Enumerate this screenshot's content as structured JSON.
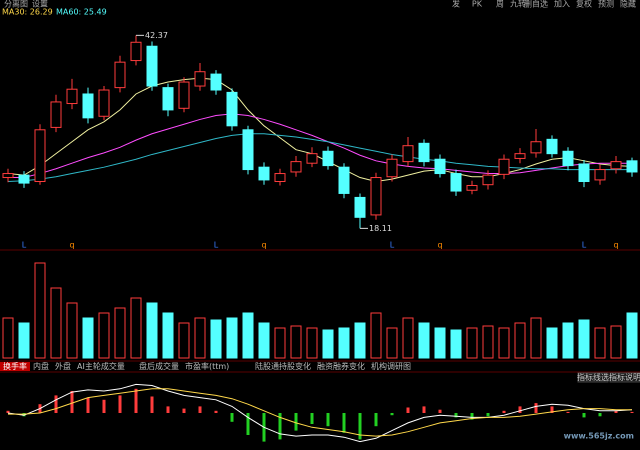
{
  "header": {
    "left_menu": [
      "分离图",
      "设置"
    ],
    "right_menu": [
      "发",
      "PK",
      "周",
      "九转",
      "删自选",
      "加入",
      "复权",
      "预测",
      "隐藏"
    ],
    "legend_texts": [
      {
        "text": "MA30: 26.29",
        "color": "#ffd84a"
      },
      {
        "text": "MA60: 25.49",
        "color": "#54ffff"
      }
    ]
  },
  "tabs": [
    "换手率",
    "内盘",
    "外盘",
    "AI主轮成交量",
    "盘后成交量",
    "市盈率(ttm)",
    "陆股通持股变化",
    "融资融券变化",
    "机构调研图"
  ],
  "buttons": [
    "指标线选",
    "指标说明"
  ],
  "watermark": "www.565jz.com",
  "chart_data": [
    {
      "type": "candlestick",
      "up_color": "#ff3c3c",
      "down_color": "#54ffff",
      "ylim": [
        16.9,
        44.55
      ],
      "annotations": [
        "42.37",
        "18.11"
      ],
      "open": [
        24.5,
        24.8,
        24.0,
        30.8,
        33.8,
        35.0,
        32.2,
        35.8,
        39.2,
        41.0,
        35.8,
        33.2,
        36.0,
        37.5,
        35.2,
        30.5,
        25.8,
        24.0,
        25.2,
        26.3,
        27.8,
        25.8,
        22.0,
        19.8,
        24.6,
        26.5,
        28.8,
        26.8,
        25.0,
        22.9,
        23.6,
        24.9,
        26.9,
        27.6,
        29.3,
        27.8,
        26.2,
        24.2,
        25.6,
        26.6
      ],
      "high": [
        25.6,
        25.3,
        31.2,
        34.9,
        36.9,
        35.8,
        36.0,
        39.8,
        42.37,
        41.6,
        36.3,
        37.1,
        38.9,
        38.0,
        35.7,
        31.0,
        26.4,
        25.6,
        27.2,
        28.3,
        28.4,
        26.3,
        22.5,
        25.1,
        27.4,
        29.6,
        29.3,
        27.4,
        25.5,
        24.1,
        25.4,
        27.4,
        28.2,
        30.6,
        29.8,
        28.3,
        26.7,
        26.1,
        27.2,
        27.0
      ],
      "low": [
        23.9,
        23.2,
        23.6,
        30.2,
        33.1,
        31.3,
        31.7,
        35.2,
        38.6,
        35.4,
        32.2,
        32.7,
        35.4,
        34.9,
        30.4,
        24.9,
        23.6,
        23.5,
        24.6,
        25.8,
        25.5,
        21.9,
        18.11,
        19.2,
        24.0,
        25.9,
        25.9,
        24.5,
        22.2,
        22.4,
        23.0,
        24.3,
        26.3,
        27.0,
        27.0,
        25.4,
        23.3,
        23.6,
        25.0,
        24.6
      ],
      "close": [
        25.0,
        23.8,
        30.5,
        34.0,
        35.6,
        32.0,
        35.5,
        39.0,
        41.5,
        36.0,
        33.0,
        36.5,
        37.8,
        35.5,
        31.0,
        25.5,
        24.2,
        25.0,
        26.5,
        27.5,
        26.0,
        22.5,
        19.5,
        24.5,
        26.8,
        28.5,
        26.5,
        25.0,
        22.8,
        23.5,
        24.8,
        26.8,
        27.5,
        29.0,
        27.5,
        26.0,
        24.0,
        25.5,
        26.5,
        25.2
      ],
      "series": [
        {
          "name": "MA10",
          "color": "#f0f0a0",
          "values": [
            25,
            24.8,
            26,
            27.5,
            29,
            30.5,
            31.5,
            33,
            35,
            36,
            36.5,
            36.8,
            37,
            36.8,
            35.5,
            33,
            31,
            29.5,
            28,
            27.5,
            26.5,
            25.5,
            24.5,
            24,
            24.3,
            24.8,
            25.3,
            25.5,
            25,
            24.6,
            24.6,
            25,
            25.5,
            26.2,
            26.8,
            27,
            26.6,
            26.2,
            26,
            25.9
          ]
        },
        {
          "name": "MA30",
          "color": "#ff4cff",
          "values": [
            24.5,
            24.5,
            25,
            25.6,
            26.3,
            27,
            27.6,
            28.3,
            29.2,
            30,
            30.6,
            31.2,
            31.8,
            32.3,
            32.5,
            32.3,
            31.8,
            31.2,
            30.5,
            29.8,
            29,
            28.2,
            27.3,
            26.6,
            26.2,
            25.9,
            25.7,
            25.6,
            25.4,
            25.2,
            25,
            25,
            25.1,
            25.4,
            25.7,
            26,
            26.2,
            26.3,
            26.3,
            26.29
          ]
        },
        {
          "name": "MA60",
          "color": "#2fb8c8",
          "values": [
            24.0,
            24.1,
            24.3,
            24.6,
            25.0,
            25.4,
            25.8,
            26.3,
            26.8,
            27.4,
            27.9,
            28.4,
            28.9,
            29.4,
            29.8,
            30.0,
            30.0,
            29.8,
            29.6,
            29.3,
            29.0,
            28.6,
            28.2,
            27.8,
            27.4,
            27.1,
            26.8,
            26.6,
            26.3,
            26.1,
            25.9,
            25.8,
            25.7,
            25.6,
            25.6,
            25.5,
            25.5,
            25.5,
            25.5,
            25.49
          ]
        }
      ],
      "signals": [
        null,
        "L",
        null,
        null,
        "q",
        null,
        null,
        null,
        null,
        null,
        null,
        null,
        null,
        "L",
        null,
        null,
        "q",
        null,
        null,
        null,
        null,
        null,
        null,
        null,
        "L",
        null,
        null,
        "q",
        null,
        null,
        null,
        null,
        null,
        null,
        null,
        null,
        "L",
        null,
        "q",
        null
      ],
      "signal_colors": {
        "L": "#3a7bff",
        "q": "#ff8c00"
      }
    },
    {
      "type": "volume",
      "ylim": [
        0,
        100
      ],
      "values": [
        40,
        35,
        95,
        70,
        55,
        40,
        45,
        50,
        60,
        55,
        45,
        35,
        40,
        38,
        40,
        45,
        35,
        30,
        32,
        30,
        28,
        30,
        35,
        45,
        30,
        40,
        35,
        30,
        28,
        30,
        32,
        30,
        35,
        40,
        30,
        35,
        38,
        30,
        32,
        45
      ]
    },
    {
      "type": "macd",
      "ylim": [
        -3,
        3
      ],
      "up_color": "#ff3c3c",
      "down_color": "#22d022",
      "values": [
        0.2,
        -0.3,
        0.8,
        1.6,
        2.0,
        1.4,
        1.2,
        1.6,
        2.2,
        1.5,
        0.6,
        0.4,
        0.6,
        0.2,
        -0.8,
        -2.0,
        -2.6,
        -2.4,
        -1.6,
        -1.0,
        -1.2,
        -1.8,
        -2.4,
        -1.2,
        -0.2,
        0.5,
        0.6,
        0.3,
        -0.4,
        -0.6,
        -0.3,
        0.2,
        0.6,
        0.9,
        0.6,
        0.1,
        -0.4,
        -0.3,
        0.2,
        0.1
      ],
      "series": [
        {
          "name": "DIF",
          "color": "#ffffff",
          "values": [
            0.0,
            -0.2,
            0.4,
            1.2,
            1.9,
            2.1,
            2.0,
            2.2,
            2.6,
            2.5,
            2.0,
            1.6,
            1.4,
            1.2,
            0.6,
            -0.4,
            -1.3,
            -1.9,
            -2.1,
            -2.0,
            -2.0,
            -2.2,
            -2.6,
            -2.3,
            -1.6,
            -0.9,
            -0.4,
            -0.2,
            -0.3,
            -0.4,
            -0.4,
            -0.2,
            0.2,
            0.6,
            0.8,
            0.7,
            0.4,
            0.2,
            0.2,
            0.3
          ]
        },
        {
          "name": "DEA",
          "color": "#ffd84a",
          "values": [
            -0.1,
            -0.1,
            0.0,
            0.4,
            0.9,
            1.4,
            1.6,
            1.8,
            2.0,
            2.2,
            2.2,
            2.0,
            1.8,
            1.6,
            1.3,
            0.8,
            0.2,
            -0.4,
            -0.9,
            -1.3,
            -1.5,
            -1.7,
            -2.0,
            -2.1,
            -2.0,
            -1.7,
            -1.3,
            -0.9,
            -0.7,
            -0.5,
            -0.4,
            -0.4,
            -0.3,
            -0.1,
            0.1,
            0.3,
            0.4,
            0.4,
            0.3,
            0.3
          ]
        }
      ]
    }
  ]
}
